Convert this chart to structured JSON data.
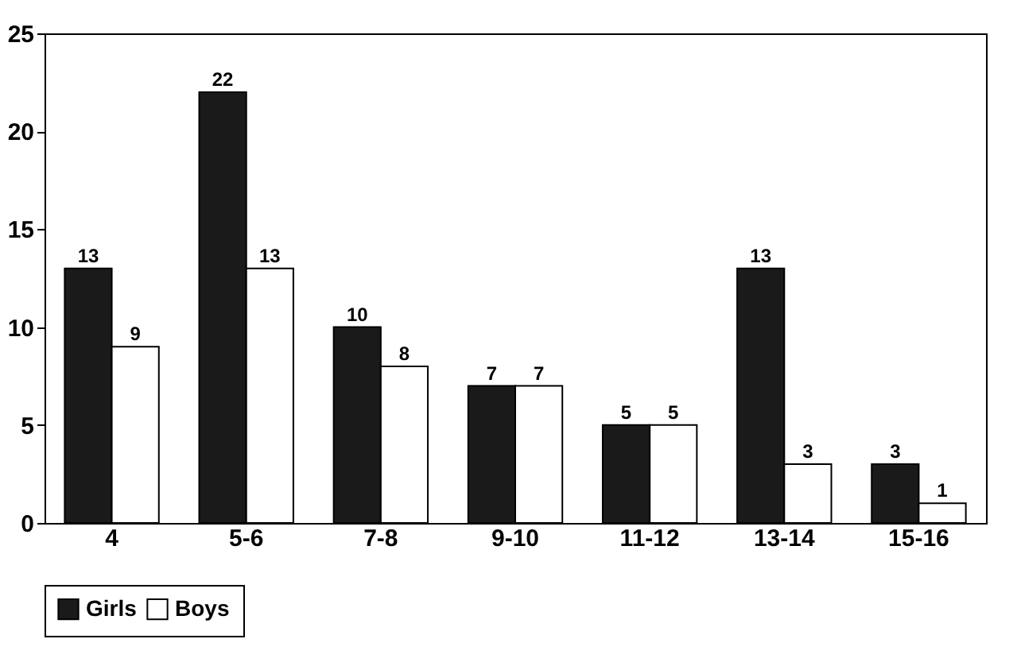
{
  "chart_data": {
    "type": "bar",
    "categories": [
      "4",
      "5-6",
      "7-8",
      "9-10",
      "11-12",
      "13-14",
      "15-16"
    ],
    "series": [
      {
        "name": "Girls",
        "color": "#1a1a1a",
        "values": [
          13,
          22,
          10,
          7,
          5,
          13,
          3
        ]
      },
      {
        "name": "Boys",
        "color": "#ffffff",
        "values": [
          9,
          13,
          8,
          7,
          5,
          3,
          1
        ]
      }
    ],
    "ylim": [
      0,
      25
    ],
    "yticks": [
      0,
      5,
      10,
      15,
      20,
      25
    ],
    "grid": false,
    "legend": "bottom",
    "data_labels": true
  }
}
